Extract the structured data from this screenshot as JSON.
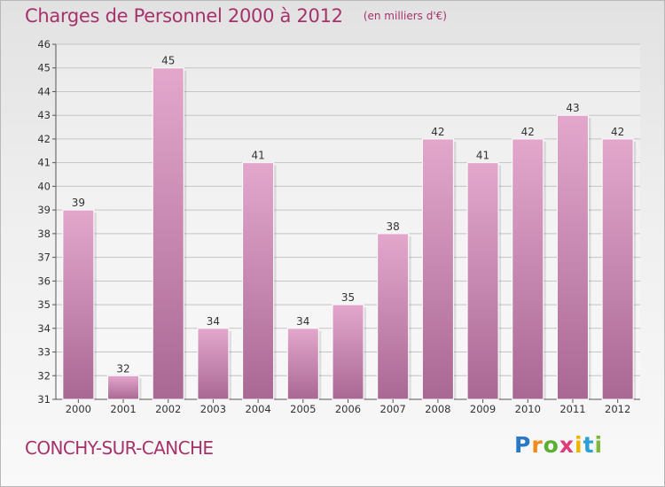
{
  "header": {
    "title": "Charges de Personnel 2000 à 2012",
    "unit": "(en milliers d'€)"
  },
  "footer": {
    "commune": "CONCHY-SUR-CANCHE",
    "logo_text": "Proxiti",
    "logo_letters": [
      {
        "ch": "P",
        "color": "#2a78c8"
      },
      {
        "ch": "r",
        "color": "#f08a1c"
      },
      {
        "ch": "o",
        "color": "#5bb031"
      },
      {
        "ch": "x",
        "color": "#e03c7c"
      },
      {
        "ch": "i",
        "color": "#f0b400"
      },
      {
        "ch": "t",
        "color": "#2a9fd8"
      },
      {
        "ch": "i",
        "color": "#7cb83a"
      }
    ]
  },
  "colors": {
    "bar_light": "#e3a7cc",
    "bar_dark": "#a96894",
    "title": "#a6326c"
  },
  "chart_data": {
    "type": "bar",
    "title": "Charges de Personnel 2000 à 2012",
    "subtitle": "(en milliers d'€)",
    "xlabel": "",
    "ylabel": "",
    "categories": [
      "2000",
      "2001",
      "2002",
      "2003",
      "2004",
      "2005",
      "2006",
      "2007",
      "2008",
      "2009",
      "2010",
      "2011",
      "2012"
    ],
    "values": [
      39,
      32,
      45,
      34,
      41,
      34,
      35,
      38,
      42,
      41,
      42,
      43,
      42
    ],
    "ylim": [
      31,
      46
    ],
    "yticks": [
      31,
      32,
      33,
      34,
      35,
      36,
      37,
      38,
      39,
      40,
      41,
      42,
      43,
      44,
      45,
      46
    ],
    "grid": true,
    "data_labels": true,
    "legend": "none"
  }
}
